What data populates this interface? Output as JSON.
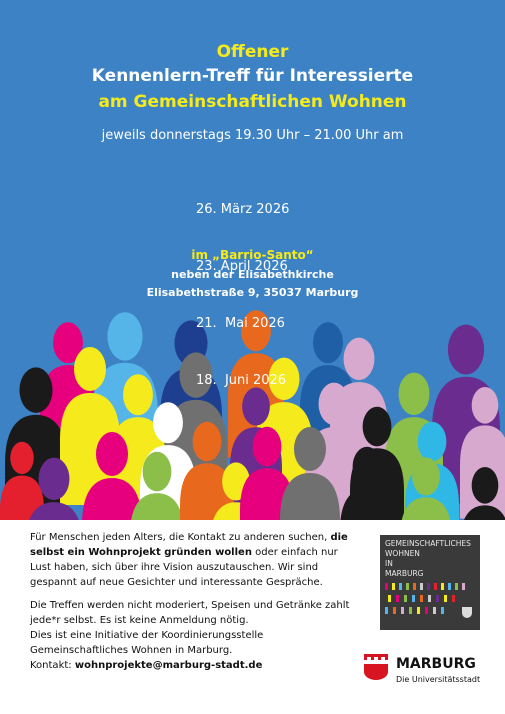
{
  "header": {
    "title_lines": [
      "Offener",
      "Kennenlern-Treff für Interessierte",
      "am Gemeinschaftlichen Wohnen"
    ],
    "schedule": "jeweils donnerstags 19.30 Uhr – 21.00 Uhr am",
    "dates": [
      "26. März 2026",
      "23. April 2026",
      "21.  Mai 2026",
      "18.  Juni 2026"
    ],
    "venue": "im „Barrio-Santo“",
    "address": [
      "neben der Elisabethkirche",
      "Elisabethstraße 9, 35037 Marburg"
    ]
  },
  "body": {
    "paragraph1": {
      "before": "Für Menschen jeden Alters, die Kontakt zu anderen suchen,",
      "bold": "die selbst ein Wohnprojekt gründen wollen",
      "after": "oder einfach nur Lust haben, sich über ihre Vision auszutauschen. Wir sind gespannt auf neue Gesichter und interessante Gespräche."
    },
    "paragraph2": [
      "Die Treffen werden nicht moderiert, Speisen und Getränke zahlt jede*r selbst. Es ist keine Anmeldung nötig.",
      "Dies ist eine Initiative der Koordinierungsstelle Gemeinschaftliches Wohnen in Marburg."
    ],
    "contact_label": "Kontakt:",
    "contact_email": "wohnprojekte@marburg-stadt.de"
  },
  "logo": {
    "lines": [
      "GEMEINSCHAFTLICHES",
      "WOHNEN",
      "IN",
      "MARBURG"
    ]
  },
  "city_logo": {
    "name": "MARBURG",
    "tagline": "Die Universitätsstadt"
  }
}
